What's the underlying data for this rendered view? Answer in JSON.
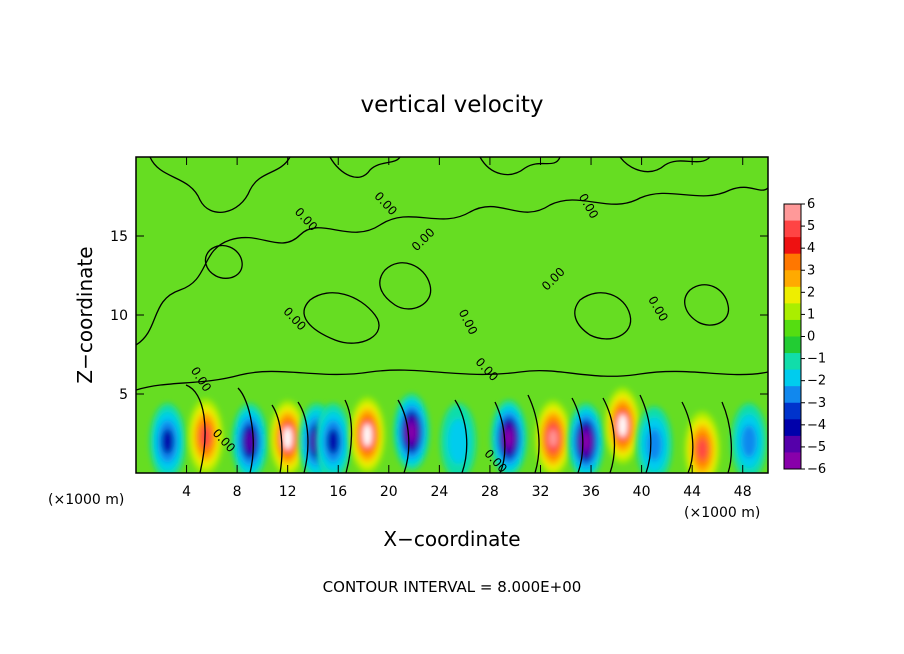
{
  "chart_data": {
    "type": "heatmap",
    "title": "vertical velocity",
    "xlabel": "X−coordinate",
    "ylabel": "Z−coordinate",
    "x_unit": "(×1000 m)",
    "y_unit": "(×1000 m)",
    "xlim": [
      0,
      50
    ],
    "ylim": [
      0,
      20
    ],
    "x_ticks": [
      4,
      8,
      12,
      16,
      20,
      24,
      28,
      32,
      36,
      40,
      44,
      48
    ],
    "y_ticks": [
      5,
      10,
      15
    ],
    "colorbar": {
      "ticks": [
        "6",
        "5",
        "4",
        "3",
        "2",
        "1",
        "0",
        "−1",
        "−2",
        "−3",
        "−4",
        "−5",
        "−6"
      ],
      "range": [
        -6,
        6
      ],
      "colors": [
        "#ff9999",
        "#ff4444",
        "#ee1111",
        "#ff7700",
        "#ffaa00",
        "#eeee00",
        "#aaee00",
        "#55dd11",
        "#22cc33",
        "#11ddaa",
        "#00ccee",
        "#1188ee",
        "#0033cc",
        "#0000aa",
        "#5500aa",
        "#8800aa"
      ]
    },
    "contour_label": "0.00",
    "contour_interval_text": "CONTOUR INTERVAL =  8.000E+00",
    "background_level": 0.5,
    "cells": [
      {
        "x": 2.5,
        "z": 2.0,
        "value": -3.2
      },
      {
        "x": 5.5,
        "z": 2.3,
        "value": 4.2
      },
      {
        "x": 9.0,
        "z": 2.0,
        "value": -4.5
      },
      {
        "x": 12.0,
        "z": 2.2,
        "value": 6.0
      },
      {
        "x": 14.3,
        "z": 2.0,
        "value": -4.3
      },
      {
        "x": 15.6,
        "z": 2.0,
        "value": -3.6
      },
      {
        "x": 18.3,
        "z": 2.4,
        "value": 6.0
      },
      {
        "x": 21.8,
        "z": 2.6,
        "value": -5.5
      },
      {
        "x": 25.5,
        "z": 2.0,
        "value": -2.0
      },
      {
        "x": 29.5,
        "z": 2.2,
        "value": -5.5
      },
      {
        "x": 33.0,
        "z": 2.2,
        "value": 5.6
      },
      {
        "x": 35.6,
        "z": 2.0,
        "value": -5.2
      },
      {
        "x": 38.5,
        "z": 3.0,
        "value": 5.8
      },
      {
        "x": 41.0,
        "z": 1.8,
        "value": -3.0
      },
      {
        "x": 44.8,
        "z": 1.5,
        "value": 4.2
      },
      {
        "x": 48.5,
        "z": 2.0,
        "value": -2.5
      }
    ]
  }
}
